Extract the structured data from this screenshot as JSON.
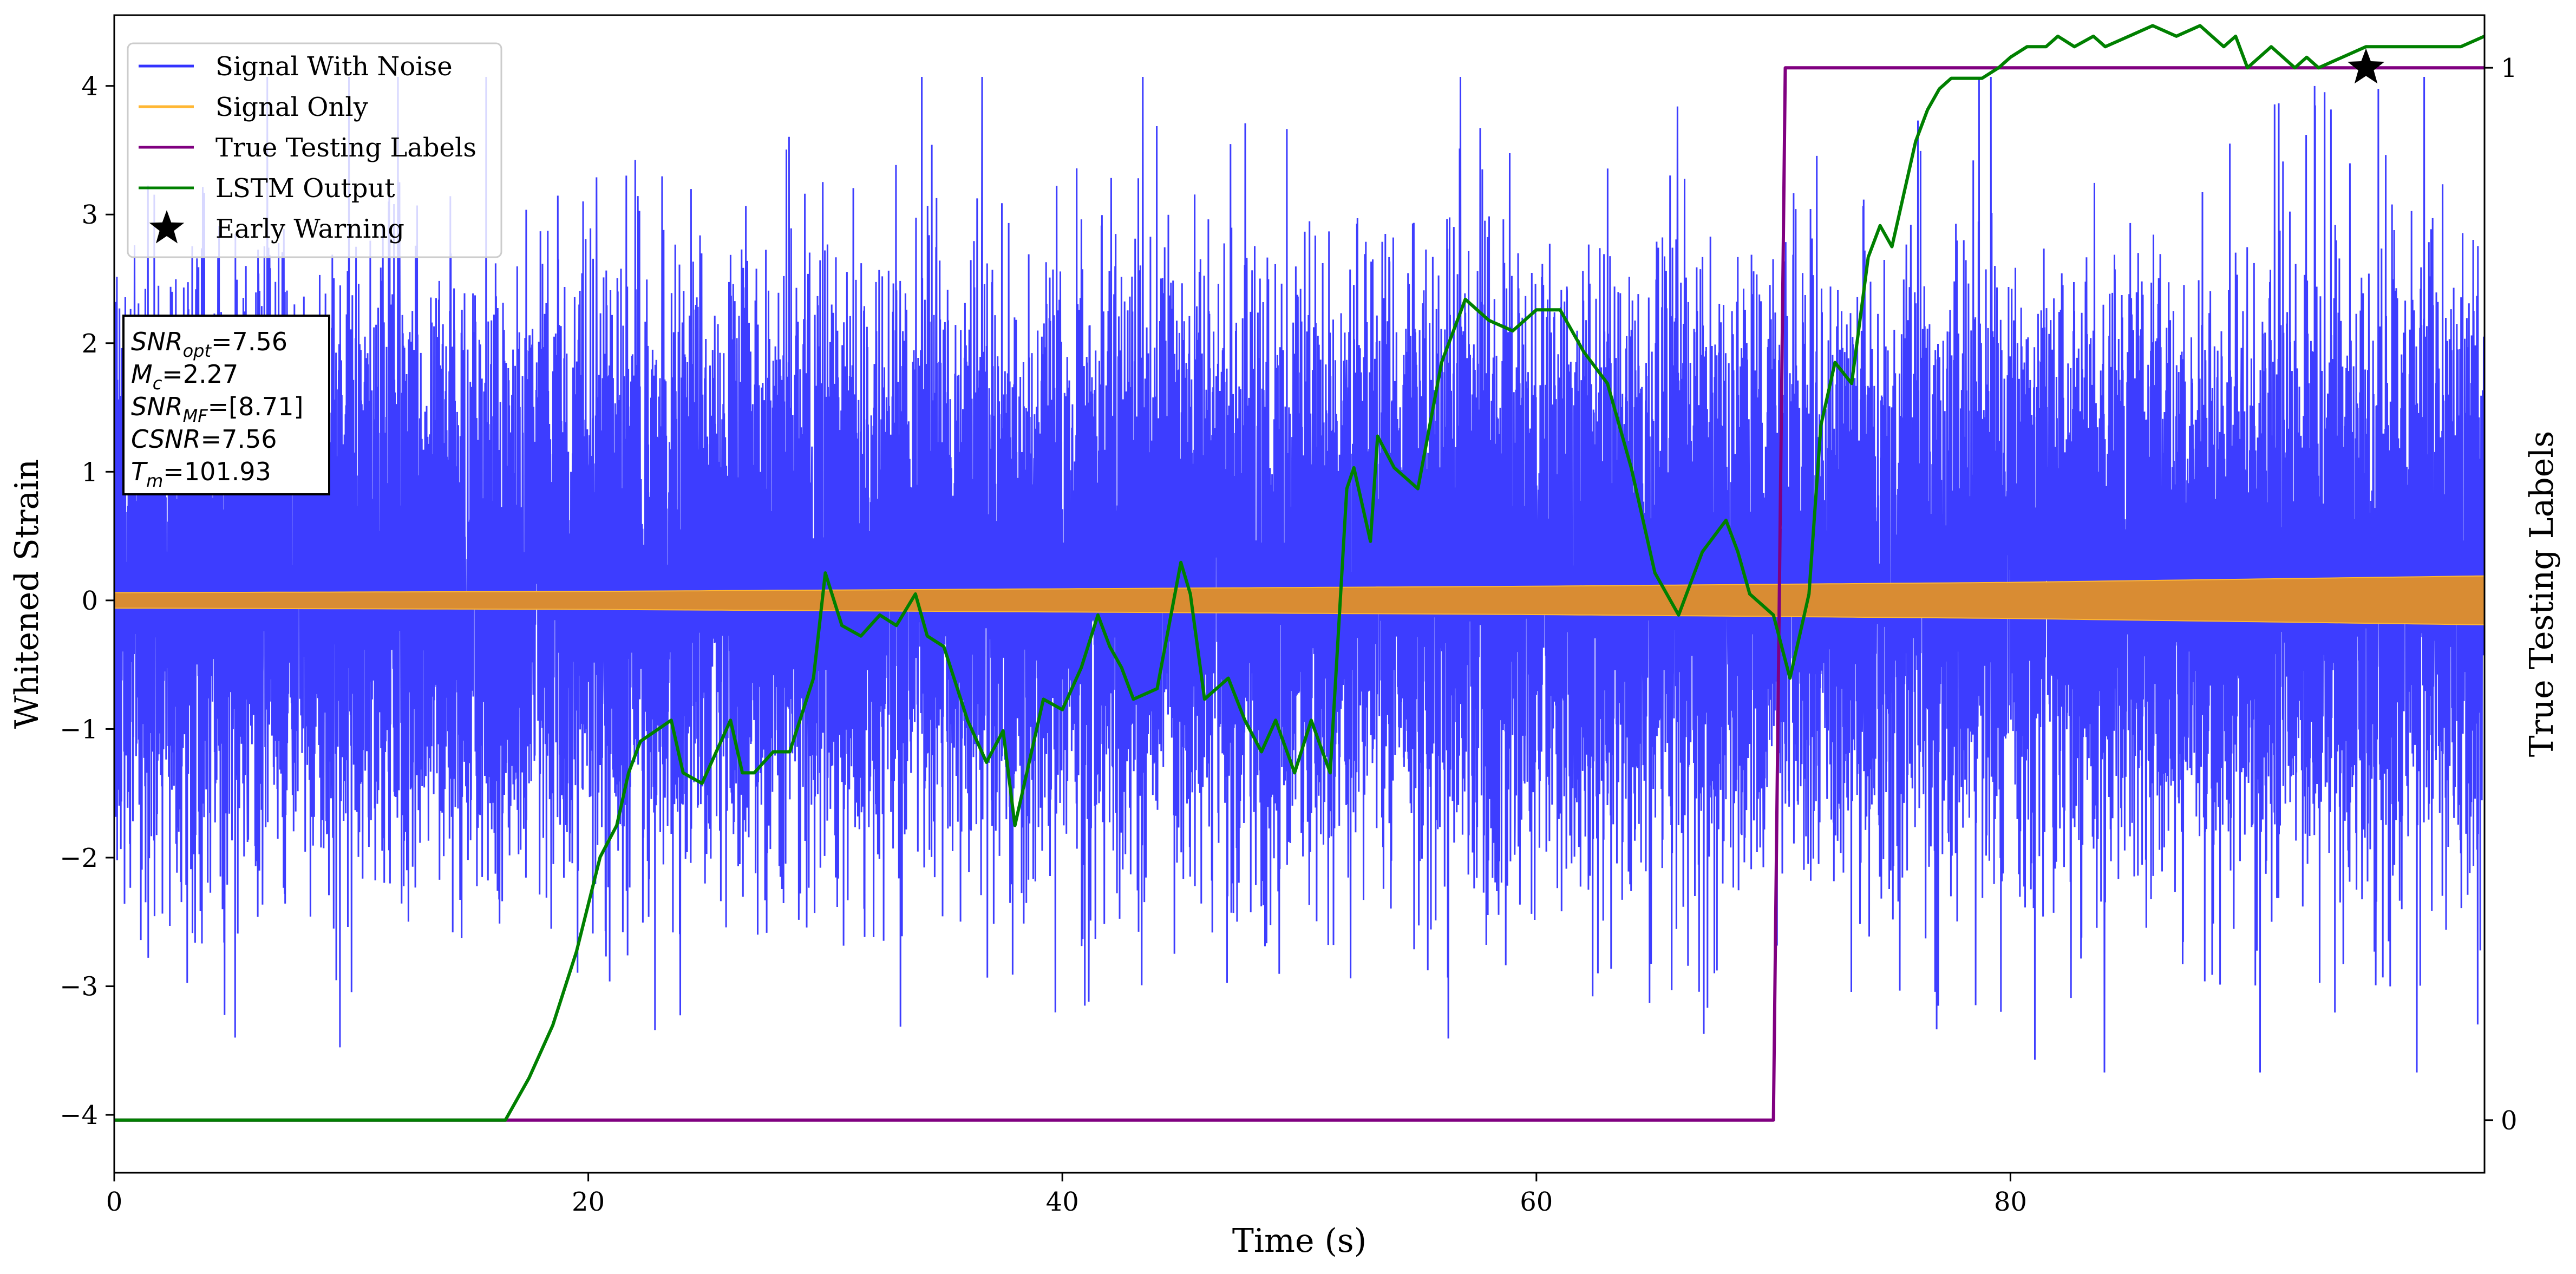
{
  "chart_data": {
    "type": "line",
    "xlabel": "Time (s)",
    "ylabel": "Whitened Strain",
    "ylabel_right": "True Testing Labels",
    "xlim": [
      0,
      100
    ],
    "ylim": [
      -4.45,
      4.55
    ],
    "ylim_right": [
      -0.05,
      1.05
    ],
    "x_ticks": [
      0,
      20,
      40,
      60,
      80
    ],
    "y_ticks": [
      -4,
      -3,
      -2,
      -1,
      0,
      1,
      2,
      3,
      4
    ],
    "y_ticks_right": [
      0,
      1
    ],
    "grid": false,
    "legend_position": "upper-left",
    "legend": [
      {
        "label": "Signal With Noise",
        "color": "#3333ff",
        "marker": "line"
      },
      {
        "label": "Signal Only",
        "color": "#ffb733",
        "marker": "line"
      },
      {
        "label": "True Testing Labels",
        "color": "#800080",
        "marker": "line"
      },
      {
        "label": "LSTM Output",
        "color": "#008000",
        "marker": "line"
      },
      {
        "label": "Early Warning",
        "color": "#000000",
        "marker": "star"
      }
    ],
    "series": [
      {
        "name": "Signal With Noise",
        "axis": "left",
        "color": "#3333ff",
        "kind": "noise",
        "x_range": [
          0,
          100
        ],
        "typical_envelope": [
          -1.6,
          2.0
        ],
        "extremes": {
          "min": -3.67,
          "max": 4.07
        }
      },
      {
        "name": "Signal Only",
        "axis": "left",
        "color": "#ffb733",
        "kind": "oscillation",
        "x": [
          0,
          20,
          40,
          60,
          80,
          100
        ],
        "amplitude": [
          0.06,
          0.07,
          0.09,
          0.11,
          0.14,
          0.19
        ]
      },
      {
        "name": "True Testing Labels",
        "axis": "right",
        "color": "#800080",
        "x": [
          0,
          70.0,
          70.5,
          100
        ],
        "y": [
          0,
          0,
          1,
          1
        ]
      },
      {
        "name": "LSTM Output",
        "axis": "right",
        "color": "#008000",
        "x": [
          0,
          16.5,
          17.5,
          18.5,
          19.5,
          20.5,
          21.2,
          21.7,
          22.2,
          23.5,
          24.0,
          24.8,
          25.4,
          26.0,
          26.5,
          27.0,
          27.8,
          28.5,
          29.5,
          30.0,
          30.7,
          31.5,
          32.3,
          33.0,
          33.8,
          34.3,
          35.0,
          36.0,
          36.8,
          37.5,
          38.0,
          39.2,
          40.0,
          40.8,
          41.5,
          42.0,
          42.5,
          43.0,
          44.0,
          45.0,
          45.4,
          46.0,
          47.0,
          47.7,
          48.4,
          49.0,
          49.8,
          50.5,
          51.3,
          52.0,
          52.3,
          53.0,
          53.3,
          54.0,
          55.0,
          56.0,
          57.0,
          58.0,
          59.0,
          60.0,
          61.0,
          62.0,
          63.0,
          64.0,
          65.0,
          65.5,
          66.0,
          66.5,
          67.0,
          68.0,
          68.5,
          69.0,
          70.0,
          70.7,
          71.5,
          72.0,
          72.6,
          73.3,
          74.0,
          74.5,
          75.0,
          75.5,
          76.0,
          76.5,
          77.0,
          77.5,
          78.0,
          78.8,
          79.5,
          80.0,
          80.7,
          81.5,
          82.0,
          82.7,
          83.5,
          84.0,
          85.0,
          86.0,
          87.0,
          88.0,
          88.5,
          89.0,
          89.5,
          90.0,
          90.5,
          91.0,
          92.0,
          92.5,
          93.0,
          94.0,
          95.0,
          96.0,
          97.0,
          98.0,
          99.0,
          100.0
        ],
        "y": [
          0,
          0,
          0.04,
          0.09,
          0.16,
          0.25,
          0.28,
          0.33,
          0.36,
          0.38,
          0.33,
          0.32,
          0.35,
          0.38,
          0.33,
          0.33,
          0.35,
          0.35,
          0.42,
          0.52,
          0.47,
          0.46,
          0.48,
          0.47,
          0.5,
          0.46,
          0.45,
          0.38,
          0.34,
          0.37,
          0.28,
          0.4,
          0.39,
          0.43,
          0.48,
          0.45,
          0.43,
          0.4,
          0.41,
          0.53,
          0.5,
          0.4,
          0.42,
          0.38,
          0.35,
          0.38,
          0.33,
          0.38,
          0.33,
          0.6,
          0.62,
          0.55,
          0.65,
          0.62,
          0.6,
          0.72,
          0.78,
          0.76,
          0.75,
          0.77,
          0.77,
          0.73,
          0.7,
          0.62,
          0.52,
          0.5,
          0.48,
          0.51,
          0.54,
          0.57,
          0.54,
          0.5,
          0.48,
          0.42,
          0.5,
          0.66,
          0.72,
          0.7,
          0.82,
          0.85,
          0.83,
          0.88,
          0.93,
          0.96,
          0.98,
          0.99,
          0.99,
          0.99,
          1.0,
          1.01,
          1.02,
          1.02,
          1.03,
          1.02,
          1.03,
          1.02,
          1.03,
          1.04,
          1.03,
          1.04,
          1.03,
          1.02,
          1.03,
          1.0,
          1.01,
          1.02,
          1.0,
          1.01,
          1.0,
          1.01,
          1.02,
          1.02,
          1.02,
          1.02,
          1.02,
          1.03
        ]
      }
    ],
    "markers": [
      {
        "name": "Early Warning",
        "axis": "right",
        "x": 95.0,
        "y": 1.0,
        "symbol": "star",
        "color": "#000000"
      }
    ],
    "info_box": {
      "position": "upper-left",
      "lines": [
        {
          "base": "SNR",
          "sub": "opt",
          "value": "=7.56"
        },
        {
          "base": "M",
          "sub": "c",
          "value": "=2.27"
        },
        {
          "base": "SNR",
          "sub": "MF",
          "value": "=[8.71]"
        },
        {
          "base": "CSNR",
          "sub": "",
          "value": "=7.56"
        },
        {
          "base": "T",
          "sub": "m",
          "value": "=101.93"
        }
      ]
    }
  }
}
